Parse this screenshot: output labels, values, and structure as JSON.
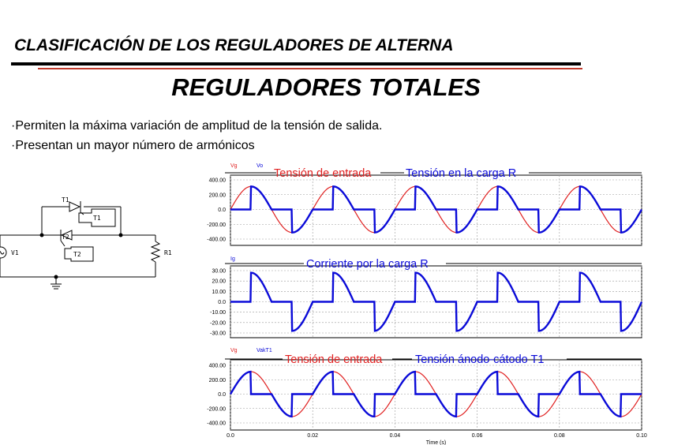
{
  "slide": {
    "section_title": "CLASIFICACIÓN DE LOS REGULADORES DE ALTERNA",
    "main_title": "REGULADORES TOTALES",
    "bullets": [
      "·Permiten la máxima variación de amplitud de la tensión de salida.",
      "·Presentan un mayor número de armónicos"
    ]
  },
  "circuit": {
    "labels": {
      "t1": "T1",
      "t2": "T2",
      "v1": "V1",
      "r1": "R1",
      "t1_box": "T1",
      "t2_box": "T2"
    }
  },
  "colors": {
    "input_voltage": "#e02020",
    "output": "#0a0ad8",
    "grid": "#9a9a9a",
    "accent_rule": "#c0392b"
  },
  "chart_data": [
    {
      "type": "line",
      "trace_tags": [
        "Vg",
        "Vo"
      ],
      "legend": [
        "Tensión de entrada",
        "Tensión en la carga R"
      ],
      "y_ticks": [
        "400.00",
        "200.00",
        "0.0",
        "-200.00",
        "-400.00"
      ],
      "ylim": [
        -400,
        400
      ],
      "xlim": [
        0,
        0.1
      ],
      "x_ticks": [
        "0.0",
        "0.02",
        "0.04",
        "0.06",
        "0.08",
        "0.10"
      ],
      "series": [
        {
          "name": "Vg",
          "amplitude": 311,
          "frequency_hz": 50
        },
        {
          "name": "Vo",
          "firing_angle_deg": 90
        }
      ]
    },
    {
      "type": "line",
      "trace_tags": [
        "Ig"
      ],
      "legend": [
        "Corriente por la carga R"
      ],
      "y_ticks": [
        "30.00",
        "20.00",
        "10.00",
        "0.0",
        "-10.00",
        "-20.00",
        "-30.00"
      ],
      "ylim": [
        -30,
        30
      ],
      "xlim": [
        0,
        0.1
      ],
      "x_ticks": [
        "0.0",
        "0.02",
        "0.04",
        "0.06",
        "0.08",
        "0.10"
      ],
      "series": [
        {
          "name": "Ig",
          "peak": 28,
          "firing_angle_deg": 90
        }
      ]
    },
    {
      "type": "line",
      "trace_tags": [
        "Vg",
        "VakT1"
      ],
      "legend": [
        "Tensión de entrada",
        "Tensión ánodo-cátodo T1"
      ],
      "y_ticks": [
        "400.00",
        "200.00",
        "0.0",
        "-200.00",
        "-400.00"
      ],
      "ylim": [
        -400,
        400
      ],
      "xlim": [
        0,
        0.1
      ],
      "x_ticks": [
        "0.0",
        "0.02",
        "0.04",
        "0.06",
        "0.08",
        "0.10"
      ],
      "xlabel": "Time (s)",
      "series": [
        {
          "name": "Vg",
          "amplitude": 311,
          "frequency_hz": 50
        },
        {
          "name": "VakT1",
          "firing_angle_deg": 90
        }
      ]
    }
  ]
}
